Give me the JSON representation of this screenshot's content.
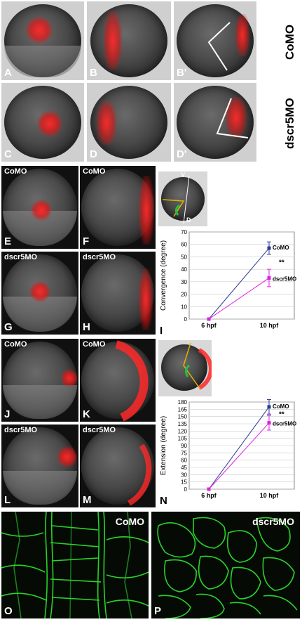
{
  "panels": {
    "A": "A",
    "B": "B",
    "B_prime": "B'",
    "C": "C",
    "D": "D",
    "D_prime": "D'",
    "E": "E",
    "F": "F",
    "G": "G",
    "H": "H",
    "I": "I",
    "J": "J",
    "K": "K",
    "L": "L",
    "M": "M",
    "N": "N",
    "O": "O",
    "P": "P"
  },
  "side_labels": {
    "como": "CoMO",
    "dscr5mo": "dscr5MO"
  },
  "embryo_labels": {
    "E": "CoMO",
    "F": "CoMO",
    "G": "dscr5MO",
    "H": "dscr5MO",
    "J": "CoMO",
    "K": "CoMO",
    "L": "dscr5MO",
    "M": "dscr5MO",
    "O": "CoMO",
    "P": "dscr5MO"
  },
  "schematic_labels": {
    "ventral": "V",
    "dorsal": "D"
  },
  "chart_data": [
    {
      "type": "line",
      "panel": "I",
      "x": [
        "6 hpf",
        "10 hpf"
      ],
      "ylabel": "Convergence (degree)",
      "ylim": [
        0,
        70
      ],
      "yticks": [
        "0",
        "10",
        "20",
        "30",
        "40",
        "50",
        "60",
        "70"
      ],
      "series": [
        {
          "name": "CoMO",
          "values": [
            0,
            57
          ],
          "error": [
            0,
            5
          ],
          "color": "#2b3a8f"
        },
        {
          "name": "dscr5MO",
          "values": [
            0,
            33
          ],
          "error": [
            0,
            7
          ],
          "color": "#e020e0"
        }
      ],
      "annotation": "**"
    },
    {
      "type": "line",
      "panel": "N",
      "x": [
        "6 hpf",
        "10 hpf"
      ],
      "ylabel": "Extension (degree)",
      "ylim": [
        0,
        180
      ],
      "yticks": [
        "0",
        "15",
        "30",
        "45",
        "60",
        "75",
        "90",
        "105",
        "120",
        "135",
        "150",
        "165",
        "180"
      ],
      "series": [
        {
          "name": "CoMO",
          "values": [
            0,
            170
          ],
          "error": [
            0,
            15
          ],
          "color": "#2b3a8f"
        },
        {
          "name": "dscr5MO",
          "values": [
            0,
            137
          ],
          "error": [
            0,
            15
          ],
          "color": "#e020e0"
        }
      ],
      "annotation": "**"
    }
  ]
}
